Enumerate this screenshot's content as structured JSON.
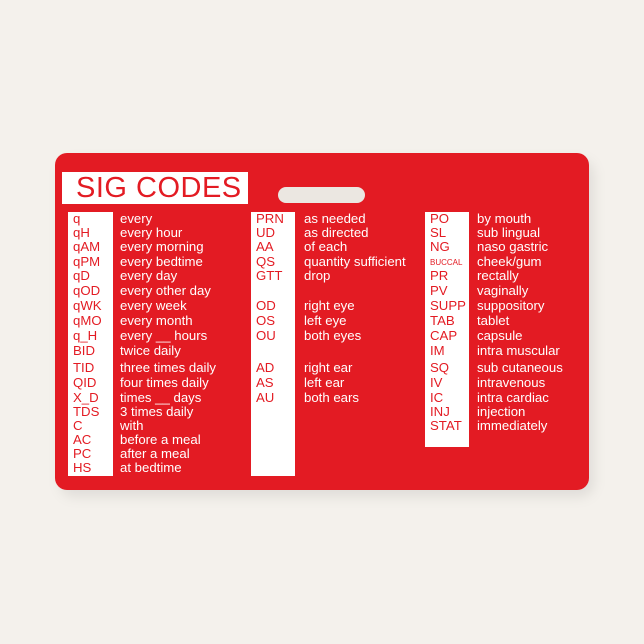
{
  "card": {
    "title": "SIG CODES",
    "colors": {
      "card": "#e31b23",
      "strip": "#ffffff",
      "background": "#f4f1ec"
    },
    "columns": [
      {
        "rows": [
          {
            "code": "q",
            "meaning": "every"
          },
          {
            "code": "qH",
            "meaning": "every hour"
          },
          {
            "code": "qAM",
            "meaning": "every morning"
          },
          {
            "code": "qPM",
            "meaning": "every bedtime"
          },
          {
            "code": "qD",
            "meaning": "every day"
          },
          {
            "code": "qOD",
            "meaning": "every other day"
          },
          {
            "code": "qWK",
            "meaning": "every week"
          },
          {
            "code": "qMO",
            "meaning": "every month"
          },
          {
            "code": "q_H",
            "meaning": "every __ hours"
          },
          {
            "code": "BID",
            "meaning": "twice daily"
          },
          {
            "code": "TID",
            "meaning": "three times daily"
          },
          {
            "code": "QID",
            "meaning": "four times daily"
          },
          {
            "code": "X_D",
            "meaning": "times __ days"
          },
          {
            "code": "TDS",
            "meaning": "3 times daily"
          },
          {
            "code": "C",
            "meaning": "with"
          },
          {
            "code": "AC",
            "meaning": "before a meal"
          },
          {
            "code": "PC",
            "meaning": "after a meal"
          },
          {
            "code": "HS",
            "meaning": "at bedtime"
          }
        ]
      },
      {
        "rows": [
          {
            "code": "PRN",
            "meaning": "as needed"
          },
          {
            "code": "UD",
            "meaning": "as directed"
          },
          {
            "code": "AA",
            "meaning": "of each"
          },
          {
            "code": "QS",
            "meaning": "quantity sufficient"
          },
          {
            "code": "GTT",
            "meaning": "drop"
          },
          {
            "code": "OD",
            "meaning": "right eye"
          },
          {
            "code": "OS",
            "meaning": "left eye"
          },
          {
            "code": "OU",
            "meaning": "both eyes"
          },
          {
            "code": "AD",
            "meaning": "right ear"
          },
          {
            "code": "AS",
            "meaning": "left ear"
          },
          {
            "code": "AU",
            "meaning": "both ears"
          }
        ]
      },
      {
        "rows": [
          {
            "code": "PO",
            "meaning": "by mouth"
          },
          {
            "code": "SL",
            "meaning": "sub lingual"
          },
          {
            "code": "NG",
            "meaning": "naso gastric"
          },
          {
            "code": "BUCCAL",
            "meaning": "cheek/gum"
          },
          {
            "code": "PR",
            "meaning": "rectally"
          },
          {
            "code": "PV",
            "meaning": "vaginally"
          },
          {
            "code": "SUPP",
            "meaning": "suppository"
          },
          {
            "code": "TAB",
            "meaning": "tablet"
          },
          {
            "code": "CAP",
            "meaning": "capsule"
          },
          {
            "code": "IM",
            "meaning": "intra muscular"
          },
          {
            "code": "SQ",
            "meaning": "sub cutaneous"
          },
          {
            "code": "IV",
            "meaning": "intravenous"
          },
          {
            "code": "IC",
            "meaning": "intra cardiac"
          },
          {
            "code": "INJ",
            "meaning": "injection"
          },
          {
            "code": "STAT",
            "meaning": "immediately"
          }
        ]
      }
    ]
  }
}
